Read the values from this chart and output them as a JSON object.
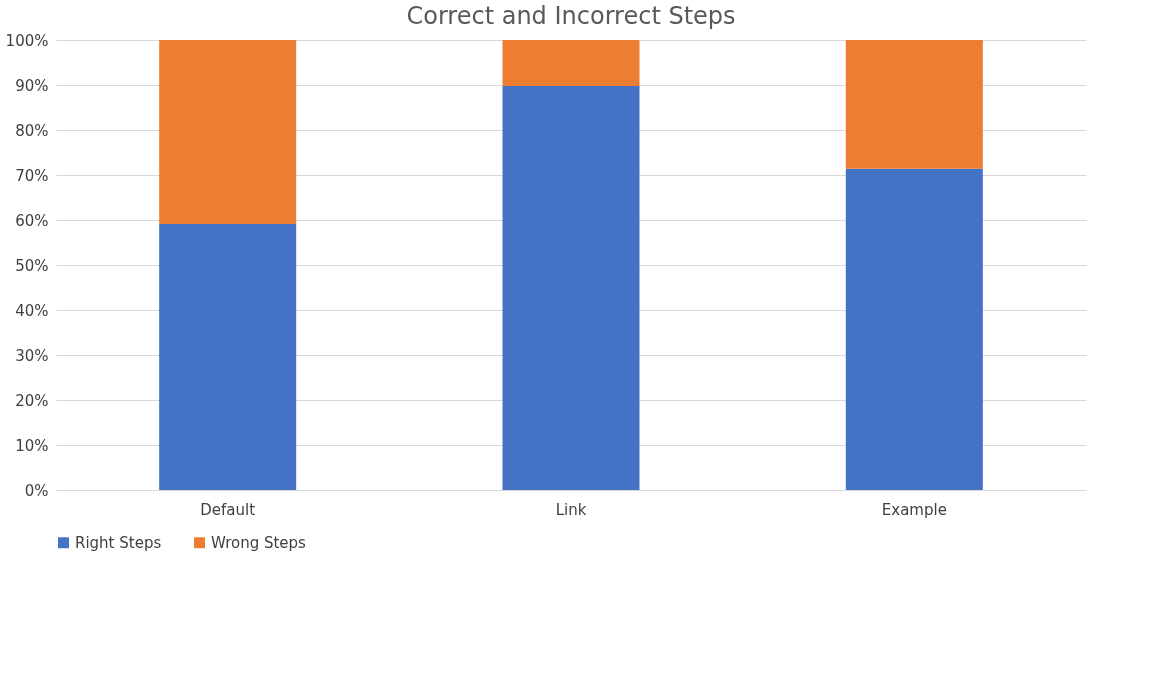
{
  "chart_data": {
    "type": "bar",
    "title": "Correct and Incorrect Steps",
    "categories": [
      "Default",
      "Link",
      "Example"
    ],
    "stacked": true,
    "series": [
      {
        "name": "Right Steps",
        "color": "#4472c4",
        "values": [
          59.1,
          89.8,
          71.4
        ]
      },
      {
        "name": "Wrong Steps",
        "color": "#ed7d31",
        "values": [
          40.9,
          10.2,
          28.6
        ]
      }
    ],
    "ylim": [
      0,
      100
    ],
    "yticks": [
      {
        "value": 0,
        "label": "0%"
      },
      {
        "value": 10,
        "label": "10%"
      },
      {
        "value": 20,
        "label": "20%"
      },
      {
        "value": 30,
        "label": "30%"
      },
      {
        "value": 40,
        "label": "40%"
      },
      {
        "value": 50,
        "label": "50%"
      },
      {
        "value": 60,
        "label": "60%"
      },
      {
        "value": 70,
        "label": "70%"
      },
      {
        "value": 80,
        "label": "80%"
      },
      {
        "value": 90,
        "label": "90%"
      },
      {
        "value": 100,
        "label": "100%"
      }
    ],
    "grid": "y",
    "legend": "bottom"
  }
}
